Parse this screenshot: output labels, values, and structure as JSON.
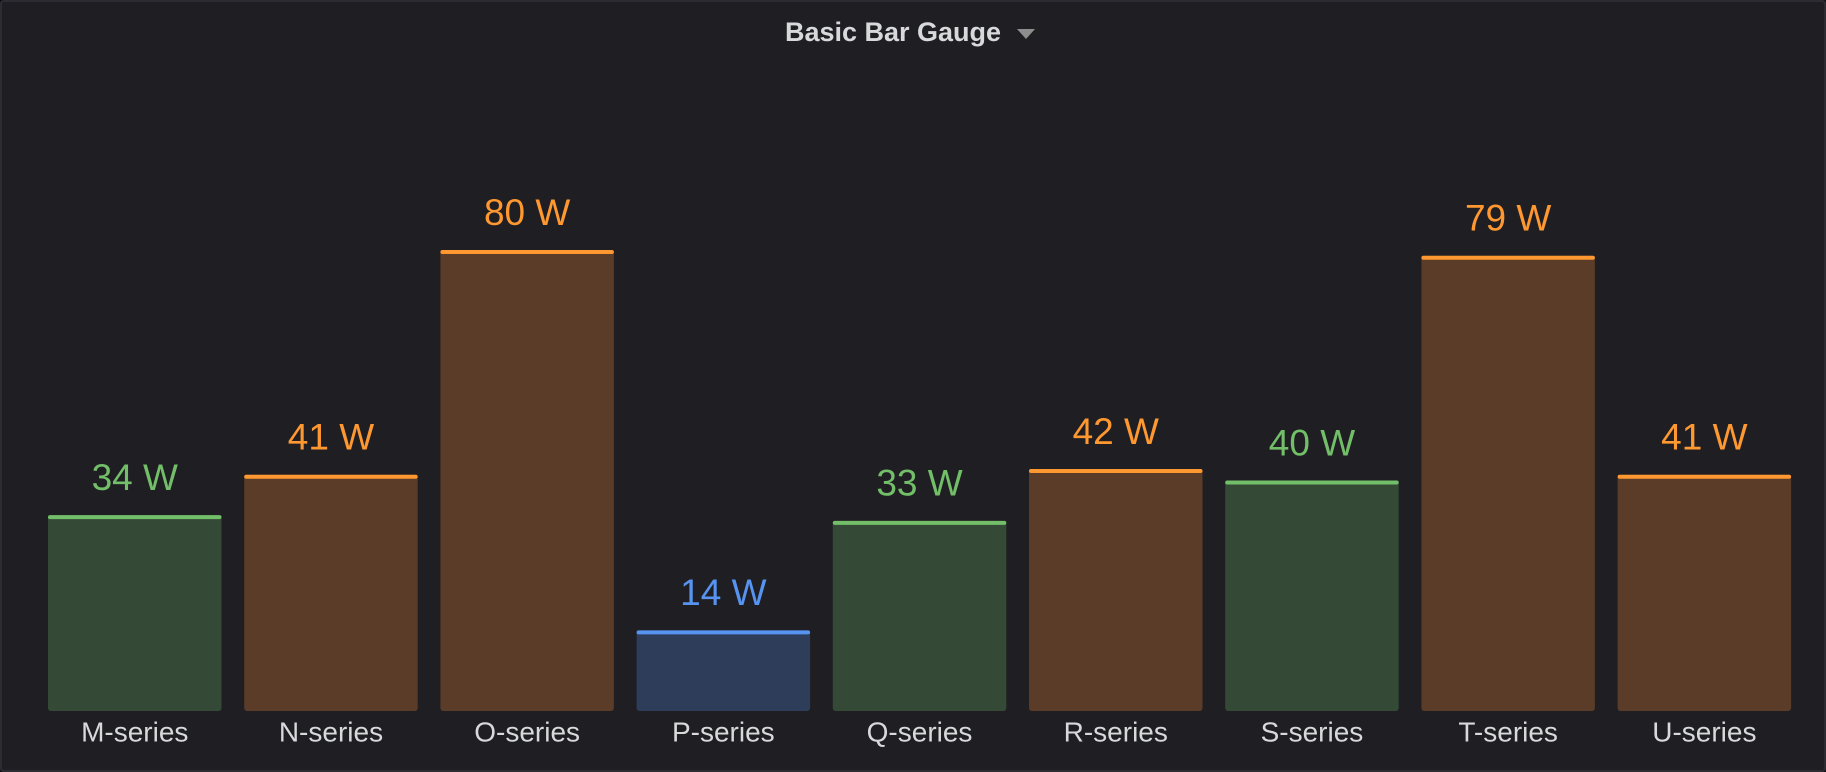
{
  "chart_data": {
    "type": "bar-gauge",
    "title": "Basic Bar Gauge",
    "categories": [
      "M-series",
      "N-series",
      "O-series",
      "P-series",
      "Q-series",
      "R-series",
      "S-series",
      "T-series",
      "U-series"
    ],
    "values": [
      34,
      41,
      80,
      14,
      33,
      42,
      40,
      79,
      41
    ],
    "value_labels": [
      "34 W",
      "41 W",
      "80 W",
      "14 W",
      "33 W",
      "42 W",
      "40 W",
      "79 W",
      "41 W"
    ],
    "colors": [
      "#73bf69",
      "#ff9830",
      "#ff9830",
      "#5794f2",
      "#73bf69",
      "#ff9830",
      "#73bf69",
      "#ff9830",
      "#ff9830"
    ],
    "fill_colors": [
      "#344a36",
      "#5a3c28",
      "#5a3c28",
      "#2d3d5a",
      "#344a36",
      "#5a3c28",
      "#344a36",
      "#5a3c28",
      "#5a3c28"
    ],
    "ylim": [
      0,
      80
    ]
  }
}
